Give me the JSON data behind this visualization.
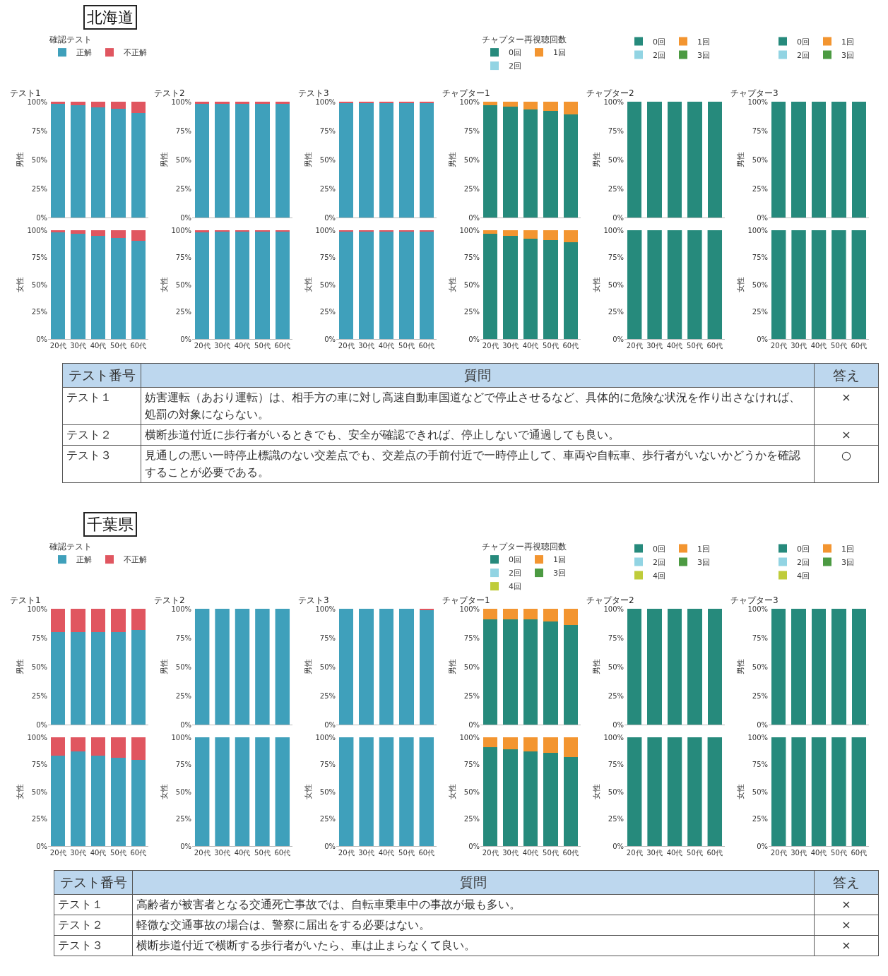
{
  "chart_data": [
    {
      "type": "bar",
      "stacked": true,
      "title": "テスト1",
      "ylabel": "男性",
      "annotations": [
        "北海道"
      ],
      "legend": "top left",
      "legend_title": "確認テスト",
      "tick_labels": "y",
      "categories": [
        null,
        null,
        null,
        null,
        null
      ],
      "ylim": [
        0,
        100
      ],
      "yticks": [
        {
          "value": 0,
          "label": "0%"
        },
        {
          "value": 25,
          "label": "25%"
        },
        {
          "value": 50,
          "label": "50%"
        },
        {
          "value": 75,
          "label": "75%"
        },
        {
          "value": 100,
          "label": "100%"
        }
      ],
      "series": [
        {
          "name": "正解",
          "color": "#3fa0bb",
          "values": [
            98,
            97,
            95,
            94,
            90
          ]
        },
        {
          "name": "不正解",
          "color": "#e05660",
          "values": [
            2,
            3,
            5,
            6,
            10
          ]
        }
      ]
    },
    {
      "type": "bar",
      "stacked": true,
      "title": "テスト2",
      "ylabel": "男性",
      "tick_labels": "y",
      "categories": [
        null,
        null,
        null,
        null,
        null
      ],
      "ylim": [
        0,
        100
      ],
      "yticks": [
        {
          "value": 0,
          "label": "0%"
        },
        {
          "value": 25,
          "label": "25%"
        },
        {
          "value": 50,
          "label": "50%"
        },
        {
          "value": 75,
          "label": "75%"
        },
        {
          "value": 100,
          "label": "100%"
        }
      ],
      "series": [
        {
          "color": "#3fa0bb",
          "values": [
            98,
            98,
            98,
            98,
            98
          ]
        },
        {
          "color": "#e05660",
          "values": [
            2,
            2,
            2,
            2,
            2
          ]
        }
      ]
    },
    {
      "type": "bar",
      "stacked": true,
      "title": "テスト3",
      "ylabel": "男性",
      "tick_labels": "y",
      "categories": [
        null,
        null,
        null,
        null,
        null
      ],
      "ylim": [
        0,
        100
      ],
      "yticks": [
        {
          "value": 0,
          "label": "0%"
        },
        {
          "value": 25,
          "label": "25%"
        },
        {
          "value": 50,
          "label": "50%"
        },
        {
          "value": 75,
          "label": "75%"
        },
        {
          "value": 100,
          "label": "100%"
        }
      ],
      "series": [
        {
          "color": "#3fa0bb",
          "values": [
            99,
            99,
            99,
            99,
            99
          ]
        },
        {
          "color": "#e05660",
          "values": [
            1,
            1,
            1,
            1,
            1
          ]
        }
      ]
    },
    {
      "type": "bar",
      "stacked": true,
      "title": "チャプター1",
      "ylabel": "男性",
      "legend": "top left",
      "legend_title": "チャプター再視聴回数",
      "tick_labels": "y",
      "categories": [
        null,
        null,
        null,
        null,
        null
      ],
      "ylim": [
        0,
        100
      ],
      "yticks": [
        {
          "value": 0,
          "label": "0%"
        },
        {
          "value": 25,
          "label": "25%"
        },
        {
          "value": 50,
          "label": "50%"
        },
        {
          "value": 75,
          "label": "75%"
        },
        {
          "value": 100,
          "label": "100%"
        }
      ],
      "series": [
        {
          "name": "0回",
          "color": "#268a7c",
          "values": [
            97,
            96,
            93,
            92,
            89
          ]
        },
        {
          "name": "1回",
          "color": "#f39530",
          "values": [
            3,
            4,
            7,
            8,
            11
          ]
        },
        {
          "name": "2回",
          "color": "#92d4e3",
          "values": [
            0,
            0,
            0,
            0,
            0
          ]
        }
      ]
    },
    {
      "type": "bar",
      "stacked": true,
      "title": "チャプター2",
      "ylabel": "男性",
      "legend": "top left",
      "tick_labels": "y",
      "categories": [
        null,
        null,
        null,
        null,
        null
      ],
      "ylim": [
        0,
        100
      ],
      "yticks": [
        {
          "value": 0,
          "label": "0%"
        },
        {
          "value": 25,
          "label": "25%"
        },
        {
          "value": 50,
          "label": "50%"
        },
        {
          "value": 75,
          "label": "75%"
        },
        {
          "value": 100,
          "label": "100%"
        }
      ],
      "series": [
        {
          "name": "0回",
          "color": "#268a7c",
          "values": [
            100,
            100,
            100,
            100,
            100
          ]
        },
        {
          "name": "1回",
          "color": "#f39530",
          "values": [
            0,
            0,
            0,
            0,
            0
          ]
        },
        {
          "name": "2回",
          "color": "#92d4e3",
          "values": [
            0,
            0,
            0,
            0,
            0
          ]
        },
        {
          "name": "3回",
          "color": "#4c9a42",
          "values": [
            0,
            0,
            0,
            0,
            0
          ]
        }
      ]
    },
    {
      "type": "bar",
      "stacked": true,
      "title": "チャプター3",
      "ylabel": "男性",
      "legend": "top left",
      "tick_labels": "y",
      "categories": [
        null,
        null,
        null,
        null,
        null
      ],
      "ylim": [
        0,
        100
      ],
      "yticks": [
        {
          "value": 0,
          "label": "0%"
        },
        {
          "value": 25,
          "label": "25%"
        },
        {
          "value": 50,
          "label": "50%"
        },
        {
          "value": 75,
          "label": "75%"
        },
        {
          "value": 100,
          "label": "100%"
        }
      ],
      "series": [
        {
          "name": "0回",
          "color": "#268a7c",
          "values": [
            100,
            100,
            100,
            100,
            100
          ]
        },
        {
          "name": "1回",
          "color": "#f39530",
          "values": [
            0,
            0,
            0,
            0,
            0
          ]
        },
        {
          "name": "2回",
          "color": "#92d4e3",
          "values": [
            0,
            0,
            0,
            0,
            0
          ]
        },
        {
          "name": "3回",
          "color": "#4c9a42",
          "values": [
            0,
            0,
            0,
            0,
            0
          ]
        }
      ]
    },
    {
      "type": "bar",
      "stacked": true,
      "ylabel": "女性",
      "categories": [
        "20代",
        "30代",
        "40代",
        "50代",
        "60代"
      ],
      "ylim": [
        0,
        100
      ],
      "yticks": [
        {
          "value": 0,
          "label": "0%"
        },
        {
          "value": 25,
          "label": "25%"
        },
        {
          "value": 50,
          "label": "50%"
        },
        {
          "value": 75,
          "label": "75%"
        },
        {
          "value": 100,
          "label": "100%"
        }
      ],
      "series": [
        {
          "color": "#3fa0bb",
          "values": [
            98,
            97,
            95,
            93,
            90
          ]
        },
        {
          "color": "#e05660",
          "values": [
            2,
            3,
            5,
            7,
            10
          ]
        }
      ]
    },
    {
      "type": "bar",
      "stacked": true,
      "ylabel": "女性",
      "categories": [
        "20代",
        "30代",
        "40代",
        "50代",
        "60代"
      ],
      "ylim": [
        0,
        100
      ],
      "yticks": [
        {
          "value": 0,
          "label": "0%"
        },
        {
          "value": 25,
          "label": "25%"
        },
        {
          "value": 50,
          "label": "50%"
        },
        {
          "value": 75,
          "label": "75%"
        },
        {
          "value": 100,
          "label": "100%"
        }
      ],
      "series": [
        {
          "color": "#3fa0bb",
          "values": [
            98,
            99,
            99,
            99,
            99
          ]
        },
        {
          "color": "#e05660",
          "values": [
            2,
            1,
            1,
            1,
            1
          ]
        }
      ]
    },
    {
      "type": "bar",
      "stacked": true,
      "ylabel": "女性",
      "categories": [
        "20代",
        "30代",
        "40代",
        "50代",
        "60代"
      ],
      "ylim": [
        0,
        100
      ],
      "yticks": [
        {
          "value": 0,
          "label": "0%"
        },
        {
          "value": 25,
          "label": "25%"
        },
        {
          "value": 50,
          "label": "50%"
        },
        {
          "value": 75,
          "label": "75%"
        },
        {
          "value": 100,
          "label": "100%"
        }
      ],
      "series": [
        {
          "color": "#3fa0bb",
          "values": [
            99,
            99,
            99,
            99,
            99
          ]
        },
        {
          "color": "#e05660",
          "values": [
            1,
            1,
            1,
            1,
            1
          ]
        }
      ]
    },
    {
      "type": "bar",
      "stacked": true,
      "ylabel": "女性",
      "categories": [
        "20代",
        "30代",
        "40代",
        "50代",
        "60代"
      ],
      "ylim": [
        0,
        100
      ],
      "yticks": [
        {
          "value": 0,
          "label": "0%"
        },
        {
          "value": 25,
          "label": "25%"
        },
        {
          "value": 50,
          "label": "50%"
        },
        {
          "value": 75,
          "label": "75%"
        },
        {
          "value": 100,
          "label": "100%"
        }
      ],
      "series": [
        {
          "color": "#268a7c",
          "values": [
            97,
            95,
            92,
            91,
            89
          ]
        },
        {
          "color": "#f39530",
          "values": [
            3,
            5,
            8,
            9,
            11
          ]
        }
      ]
    },
    {
      "type": "bar",
      "stacked": true,
      "ylabel": "女性",
      "categories": [
        "20代",
        "30代",
        "40代",
        "50代",
        "60代"
      ],
      "ylim": [
        0,
        100
      ],
      "yticks": [
        {
          "value": 0,
          "label": "0%"
        },
        {
          "value": 25,
          "label": "25%"
        },
        {
          "value": 50,
          "label": "50%"
        },
        {
          "value": 75,
          "label": "75%"
        },
        {
          "value": 100,
          "label": "100%"
        }
      ],
      "series": [
        {
          "color": "#268a7c",
          "values": [
            100,
            100,
            100,
            100,
            100
          ]
        }
      ]
    },
    {
      "type": "bar",
      "stacked": true,
      "ylabel": "女性",
      "categories": [
        "20代",
        "30代",
        "40代",
        "50代",
        "60代"
      ],
      "ylim": [
        0,
        100
      ],
      "yticks": [
        {
          "value": 0,
          "label": "0%"
        },
        {
          "value": 25,
          "label": "25%"
        },
        {
          "value": 50,
          "label": "50%"
        },
        {
          "value": 75,
          "label": "75%"
        },
        {
          "value": 100,
          "label": "100%"
        }
      ],
      "series": [
        {
          "color": "#268a7c",
          "values": [
            100,
            100,
            100,
            100,
            100
          ]
        }
      ]
    },
    {
      "type": "other",
      "annotations": [
        "テスト番号",
        "質問",
        "答え",
        "テスト１",
        "妨害運転（あおり運転）は、相手方の車に対し高速自動車国道などで停止させるなど、具体的に危険な状況を作り出さなければ、処罰の対象にならない。",
        "×",
        "テスト２",
        "横断歩道付近に歩行者がいるときでも、安全が確認できれば、停止しないで通過しても良い。",
        "×",
        "テスト３",
        "見通しの悪い一時停止標識のない交差点でも、交差点の手前付近で一時停止して、車両や自転車、歩行者がいないかどうかを確認することが必要である。",
        "○"
      ]
    },
    {
      "type": "bar",
      "stacked": true,
      "title": "テスト1",
      "ylabel": "男性",
      "annotations": [
        "千葉県"
      ],
      "legend": "top left",
      "legend_title": "確認テスト",
      "tick_labels": "y",
      "categories": [
        null,
        null,
        null,
        null,
        null
      ],
      "ylim": [
        0,
        100
      ],
      "yticks": [
        {
          "value": 0,
          "label": "0%"
        },
        {
          "value": 25,
          "label": "25%"
        },
        {
          "value": 50,
          "label": "50%"
        },
        {
          "value": 75,
          "label": "75%"
        },
        {
          "value": 100,
          "label": "100%"
        }
      ],
      "series": [
        {
          "name": "正解",
          "color": "#3fa0bb",
          "values": [
            80,
            80,
            80,
            80,
            82
          ]
        },
        {
          "name": "不正解",
          "color": "#e05660",
          "values": [
            20,
            20,
            20,
            20,
            18
          ]
        }
      ]
    },
    {
      "type": "bar",
      "stacked": true,
      "title": "テスト2",
      "ylabel": "男性",
      "tick_labels": "y",
      "categories": [
        null,
        null,
        null,
        null,
        null
      ],
      "ylim": [
        0,
        100
      ],
      "yticks": [
        {
          "value": 0,
          "label": "0%"
        },
        {
          "value": 25,
          "label": "25%"
        },
        {
          "value": 50,
          "label": "50%"
        },
        {
          "value": 75,
          "label": "75%"
        },
        {
          "value": 100,
          "label": "100%"
        }
      ],
      "series": [
        {
          "color": "#3fa0bb",
          "values": [
            100,
            100,
            100,
            100,
            100
          ]
        }
      ]
    },
    {
      "type": "bar",
      "stacked": true,
      "title": "テスト3",
      "ylabel": "男性",
      "tick_labels": "y",
      "categories": [
        null,
        null,
        null,
        null,
        null
      ],
      "ylim": [
        0,
        100
      ],
      "yticks": [
        {
          "value": 0,
          "label": "0%"
        },
        {
          "value": 25,
          "label": "25%"
        },
        {
          "value": 50,
          "label": "50%"
        },
        {
          "value": 75,
          "label": "75%"
        },
        {
          "value": 100,
          "label": "100%"
        }
      ],
      "series": [
        {
          "color": "#3fa0bb",
          "values": [
            100,
            100,
            100,
            100,
            99
          ]
        },
        {
          "color": "#e05660",
          "values": [
            0,
            0,
            0,
            0,
            1
          ]
        }
      ]
    },
    {
      "type": "bar",
      "stacked": true,
      "title": "チャプター1",
      "ylabel": "男性",
      "legend": "top left",
      "legend_title": "チャプター再視聴回数",
      "tick_labels": "y",
      "categories": [
        null,
        null,
        null,
        null,
        null
      ],
      "ylim": [
        0,
        100
      ],
      "yticks": [
        {
          "value": 0,
          "label": "0%"
        },
        {
          "value": 25,
          "label": "25%"
        },
        {
          "value": 50,
          "label": "50%"
        },
        {
          "value": 75,
          "label": "75%"
        },
        {
          "value": 100,
          "label": "100%"
        }
      ],
      "series": [
        {
          "name": "0回",
          "color": "#268a7c",
          "values": [
            91,
            91,
            91,
            89,
            86
          ]
        },
        {
          "name": "1回",
          "color": "#f39530",
          "values": [
            9,
            9,
            9,
            11,
            14
          ]
        },
        {
          "name": "2回",
          "color": "#92d4e3",
          "values": [
            0,
            0,
            0,
            0,
            0
          ]
        },
        {
          "name": "3回",
          "color": "#4c9a42",
          "values": [
            0,
            0,
            0,
            0,
            0
          ]
        },
        {
          "name": "4回",
          "color": "#bfcc3a",
          "values": [
            0,
            0,
            0,
            0,
            0
          ]
        }
      ]
    },
    {
      "type": "bar",
      "stacked": true,
      "title": "チャプター2",
      "ylabel": "男性",
      "legend": "top left",
      "tick_labels": "y",
      "categories": [
        null,
        null,
        null,
        null,
        null
      ],
      "ylim": [
        0,
        100
      ],
      "yticks": [
        {
          "value": 0,
          "label": "0%"
        },
        {
          "value": 25,
          "label": "25%"
        },
        {
          "value": 50,
          "label": "50%"
        },
        {
          "value": 75,
          "label": "75%"
        },
        {
          "value": 100,
          "label": "100%"
        }
      ],
      "series": [
        {
          "name": "0回",
          "color": "#268a7c",
          "values": [
            100,
            100,
            100,
            100,
            100
          ]
        },
        {
          "name": "1回",
          "color": "#f39530",
          "values": [
            0,
            0,
            0,
            0,
            0
          ]
        },
        {
          "name": "2回",
          "color": "#92d4e3",
          "values": [
            0,
            0,
            0,
            0,
            0
          ]
        },
        {
          "name": "3回",
          "color": "#4c9a42",
          "values": [
            0,
            0,
            0,
            0,
            0
          ]
        },
        {
          "name": "4回",
          "color": "#bfcc3a",
          "values": [
            0,
            0,
            0,
            0,
            0
          ]
        }
      ]
    },
    {
      "type": "bar",
      "stacked": true,
      "title": "チャプター3",
      "ylabel": "男性",
      "legend": "top left",
      "tick_labels": "y",
      "categories": [
        null,
        null,
        null,
        null,
        null
      ],
      "ylim": [
        0,
        100
      ],
      "yticks": [
        {
          "value": 0,
          "label": "0%"
        },
        {
          "value": 25,
          "label": "25%"
        },
        {
          "value": 50,
          "label": "50%"
        },
        {
          "value": 75,
          "label": "75%"
        },
        {
          "value": 100,
          "label": "100%"
        }
      ],
      "series": [
        {
          "name": "0回",
          "color": "#268a7c",
          "values": [
            100,
            100,
            100,
            100,
            100
          ]
        },
        {
          "name": "1回",
          "color": "#f39530",
          "values": [
            0,
            0,
            0,
            0,
            0
          ]
        },
        {
          "name": "2回",
          "color": "#92d4e3",
          "values": [
            0,
            0,
            0,
            0,
            0
          ]
        },
        {
          "name": "3回",
          "color": "#4c9a42",
          "values": [
            0,
            0,
            0,
            0,
            0
          ]
        },
        {
          "name": "4回",
          "color": "#bfcc3a",
          "values": [
            0,
            0,
            0,
            0,
            0
          ]
        }
      ]
    },
    {
      "type": "bar",
      "stacked": true,
      "ylabel": "女性",
      "categories": [
        "20代",
        "30代",
        "40代",
        "50代",
        "60代"
      ],
      "ylim": [
        0,
        100
      ],
      "yticks": [
        {
          "value": 0,
          "label": "0%"
        },
        {
          "value": 25,
          "label": "25%"
        },
        {
          "value": 50,
          "label": "50%"
        },
        {
          "value": 75,
          "label": "75%"
        },
        {
          "value": 100,
          "label": "100%"
        }
      ],
      "series": [
        {
          "color": "#3fa0bb",
          "values": [
            83,
            87,
            83,
            81,
            79
          ]
        },
        {
          "color": "#e05660",
          "values": [
            17,
            13,
            17,
            19,
            21
          ]
        }
      ]
    },
    {
      "type": "bar",
      "stacked": true,
      "ylabel": "女性",
      "categories": [
        "20代",
        "30代",
        "40代",
        "50代",
        "60代"
      ],
      "ylim": [
        0,
        100
      ],
      "yticks": [
        {
          "value": 0,
          "label": "0%"
        },
        {
          "value": 25,
          "label": "25%"
        },
        {
          "value": 50,
          "label": "50%"
        },
        {
          "value": 75,
          "label": "75%"
        },
        {
          "value": 100,
          "label": "100%"
        }
      ],
      "series": [
        {
          "color": "#3fa0bb",
          "values": [
            100,
            100,
            100,
            100,
            100
          ]
        }
      ]
    },
    {
      "type": "bar",
      "stacked": true,
      "ylabel": "女性",
      "categories": [
        "20代",
        "30代",
        "40代",
        "50代",
        "60代"
      ],
      "ylim": [
        0,
        100
      ],
      "yticks": [
        {
          "value": 0,
          "label": "0%"
        },
        {
          "value": 25,
          "label": "25%"
        },
        {
          "value": 50,
          "label": "50%"
        },
        {
          "value": 75,
          "label": "75%"
        },
        {
          "value": 100,
          "label": "100%"
        }
      ],
      "series": [
        {
          "color": "#3fa0bb",
          "values": [
            100,
            100,
            100,
            100,
            100
          ]
        }
      ]
    },
    {
      "type": "bar",
      "stacked": true,
      "ylabel": "女性",
      "categories": [
        "20代",
        "30代",
        "40代",
        "50代",
        "60代"
      ],
      "ylim": [
        0,
        100
      ],
      "yticks": [
        {
          "value": 0,
          "label": "0%"
        },
        {
          "value": 25,
          "label": "25%"
        },
        {
          "value": 50,
          "label": "50%"
        },
        {
          "value": 75,
          "label": "75%"
        },
        {
          "value": 100,
          "label": "100%"
        }
      ],
      "series": [
        {
          "color": "#268a7c",
          "values": [
            91,
            89,
            87,
            86,
            82
          ]
        },
        {
          "color": "#f39530",
          "values": [
            9,
            11,
            13,
            14,
            18
          ]
        }
      ]
    },
    {
      "type": "bar",
      "stacked": true,
      "ylabel": "女性",
      "categories": [
        "20代",
        "30代",
        "40代",
        "50代",
        "60代"
      ],
      "ylim": [
        0,
        100
      ],
      "yticks": [
        {
          "value": 0,
          "label": "0%"
        },
        {
          "value": 25,
          "label": "25%"
        },
        {
          "value": 50,
          "label": "50%"
        },
        {
          "value": 75,
          "label": "75%"
        },
        {
          "value": 100,
          "label": "100%"
        }
      ],
      "series": [
        {
          "color": "#268a7c",
          "values": [
            100,
            100,
            100,
            100,
            100
          ]
        }
      ]
    },
    {
      "type": "bar",
      "stacked": true,
      "ylabel": "女性",
      "categories": [
        "20代",
        "30代",
        "40代",
        "50代",
        "60代"
      ],
      "ylim": [
        0,
        100
      ],
      "yticks": [
        {
          "value": 0,
          "label": "0%"
        },
        {
          "value": 25,
          "label": "25%"
        },
        {
          "value": 50,
          "label": "50%"
        },
        {
          "value": 75,
          "label": "75%"
        },
        {
          "value": 100,
          "label": "100%"
        }
      ],
      "series": [
        {
          "color": "#268a7c",
          "values": [
            100,
            100,
            100,
            100,
            100
          ]
        }
      ]
    },
    {
      "type": "other",
      "annotations": [
        "テスト番号",
        "質問",
        "答え",
        "テスト１",
        "高齢者が被害者となる交通死亡事故では、自転車乗車中の事故が最も多い。",
        "×",
        "テスト２",
        "軽微な交通事故の場合は、警察に届出をする必要はない。",
        "×",
        "テスト３",
        "横断歩道付近で横断する歩行者がいたら、車は止まらなくて良い。",
        "×"
      ]
    }
  ]
}
